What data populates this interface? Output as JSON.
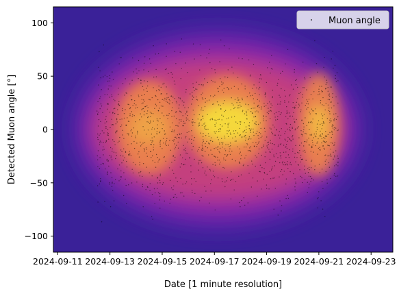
{
  "chart_data": {
    "type": "scatter",
    "overlay": "density contour (plasma colormap)",
    "xlabel": "Date [1 minute resolution]",
    "ylabel": "Detected Muon angle [°]",
    "x_type": "date",
    "xlim": [
      "2024-09-10T20:00",
      "2024-09-23T20:00"
    ],
    "ylim": [
      -115,
      115
    ],
    "x_ticks": [
      "2024-09-11",
      "2024-09-13",
      "2024-09-15",
      "2024-09-17",
      "2024-09-19",
      "2024-09-21",
      "2024-09-23"
    ],
    "y_ticks": [
      100,
      50,
      0,
      -50,
      -100
    ],
    "y_tick_labels": [
      "100",
      "50",
      "0",
      "−50",
      "−100"
    ],
    "grid": false,
    "legend": {
      "position": "top-right",
      "entries": [
        "Muon angle"
      ]
    },
    "series": [
      {
        "name": "Muon angle",
        "marker_color": "#000000",
        "x_range": [
          "2024-09-12T12:00",
          "2024-09-21T18:00"
        ],
        "y_range": [
          -88,
          88
        ]
      }
    ],
    "density_clusters": [
      {
        "x_center": "2024-09-14T12:00",
        "y_center": 2
      },
      {
        "x_center": "2024-09-17T12:00",
        "y_center": 7
      },
      {
        "x_center": "2024-09-21T00:00",
        "y_center": 5
      }
    ],
    "colors": {
      "background": "#3a2198",
      "mid": "#9c27a6",
      "hot": "#f08a44",
      "peak": "#f7e23c"
    }
  }
}
